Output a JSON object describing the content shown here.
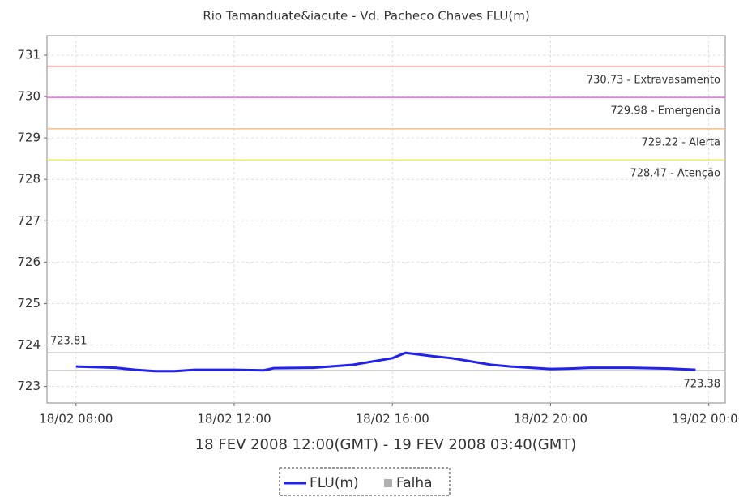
{
  "chart_data": {
    "type": "line",
    "title": "Rio Tamanduate&iacute - Vd. Pacheco Chaves FLU(m)",
    "x_label": "18 FEV 2008 12:00(GMT) - 19 FEV 2008 03:40(GMT)",
    "x": [
      "18/02 08:00",
      "18/02 09:00",
      "18/02 09:30",
      "18/02 10:00",
      "18/02 10:30",
      "18/02 11:00",
      "18/02 12:00",
      "18/02 12:45",
      "18/02 13:00",
      "18/02 14:00",
      "18/02 15:00",
      "18/02 15:30",
      "18/02 16:00",
      "18/02 16:20",
      "18/02 17:00",
      "18/02 17:30",
      "18/02 18:00",
      "18/02 18:30",
      "18/02 19:00",
      "18/02 19:30",
      "18/02 20:00",
      "18/02 20:30",
      "18/02 21:00",
      "18/02 22:00",
      "18/02 23:00",
      "18/02 23:40"
    ],
    "series": [
      {
        "name": "FLU(m)",
        "color": "#2222ee",
        "values": [
          723.48,
          723.45,
          723.4,
          723.37,
          723.37,
          723.4,
          723.4,
          723.39,
          723.44,
          723.45,
          723.52,
          723.6,
          723.68,
          723.81,
          723.73,
          723.68,
          723.6,
          723.52,
          723.48,
          723.45,
          723.42,
          723.43,
          723.45,
          723.45,
          723.43,
          723.4
        ]
      }
    ],
    "legend_extra": {
      "name": "Falha",
      "color": "#b0b0b0"
    },
    "thresholds": [
      {
        "value": 730.73,
        "label": "730.73 - Extravasamento",
        "color": "#f08080"
      },
      {
        "value": 729.98,
        "label": "729.98 - Emergencia",
        "color": "#ee66ee"
      },
      {
        "value": 729.22,
        "label": "729.22 - Alerta",
        "color": "#f4c08a"
      },
      {
        "value": 728.47,
        "label": "728.47 - Atenção",
        "color": "#eeee66"
      }
    ],
    "extremes": [
      {
        "value": 723.81,
        "label": "723.81",
        "color": "#b8b8b8",
        "side": "left"
      },
      {
        "value": 723.38,
        "label": "723.38",
        "color": "#b8b8b8",
        "side": "right"
      }
    ],
    "xlim": [
      "18/02 07:16",
      "19/02 00:25"
    ],
    "xticks": [
      "18/02 08:00",
      "18/02 12:00",
      "18/02 16:00",
      "18/02 20:00",
      "19/02 00:00"
    ],
    "ylim": [
      722.6,
      731.47
    ],
    "yticks": [
      723,
      724,
      725,
      726,
      727,
      728,
      729,
      730,
      731
    ],
    "grid": true
  }
}
